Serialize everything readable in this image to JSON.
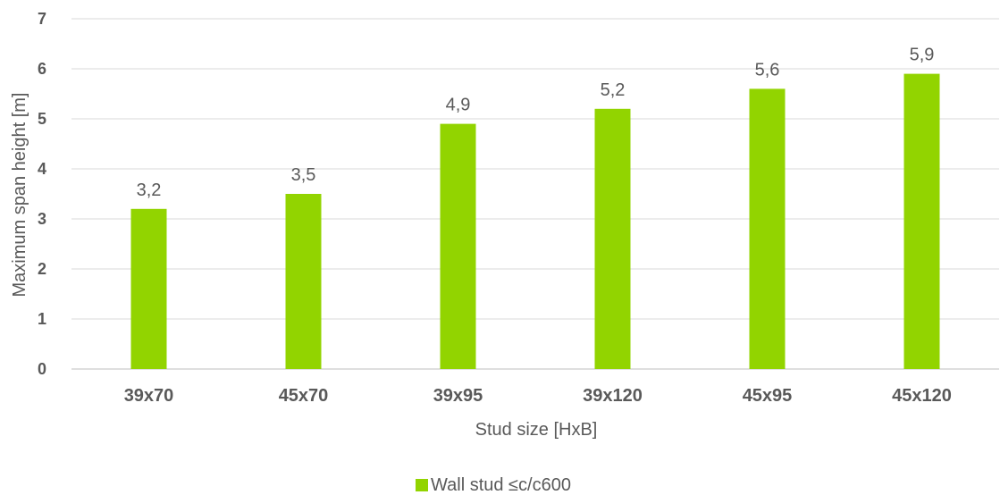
{
  "chart_data": {
    "type": "bar",
    "categories": [
      "39x70",
      "45x70",
      "39x95",
      "39x120",
      "45x95",
      "45x120"
    ],
    "series": [
      {
        "name": "Wall stud ≤c/c600",
        "values": [
          3.2,
          3.5,
          4.9,
          5.2,
          5.6,
          5.9
        ],
        "labels": [
          "3,2",
          "3,5",
          "4,9",
          "5,2",
          "5,6",
          "5,9"
        ],
        "color": "#92D400"
      }
    ],
    "xlabel": "Stud size [HxB]",
    "ylabel": "Maximum span height [m]",
    "ylim": [
      0,
      7
    ],
    "yticks": [
      0,
      1,
      2,
      3,
      4,
      5,
      6,
      7
    ],
    "grid": true,
    "legend_position": "bottom"
  }
}
